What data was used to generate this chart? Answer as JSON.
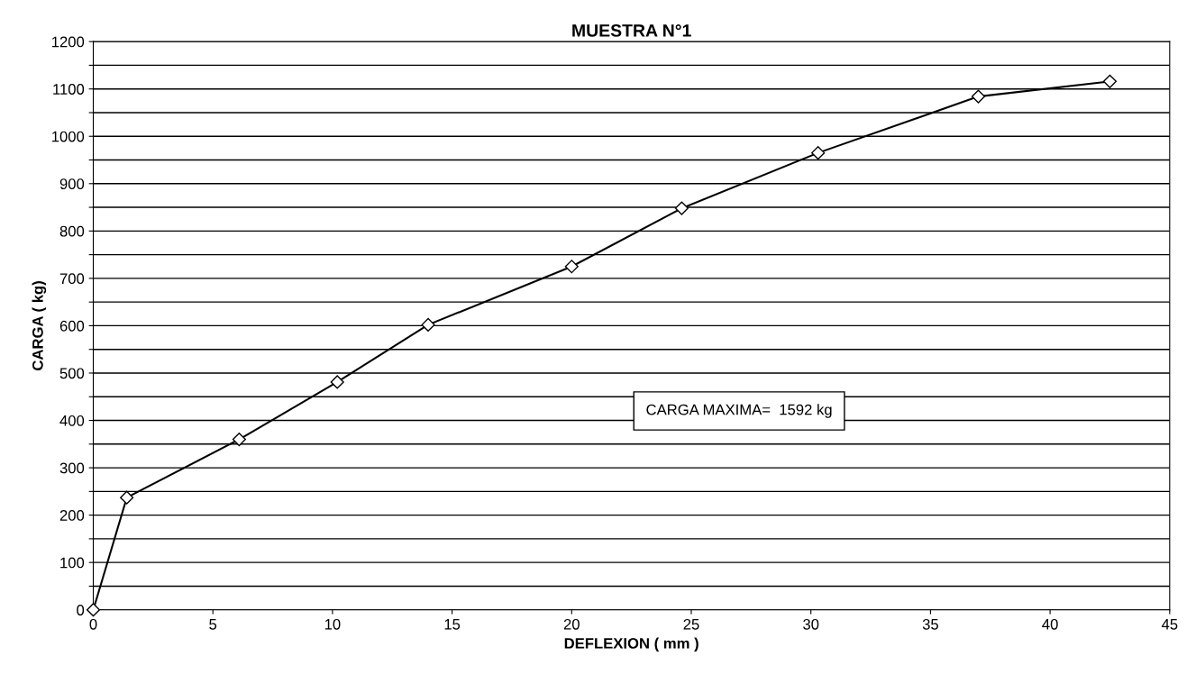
{
  "chart_data": {
    "type": "line",
    "title": "MUESTRA N°1",
    "xlabel": "DEFLEXION ( mm )",
    "ylabel": "CARGA ( kg)",
    "annotations": [
      "CARGA MAXIMA=  1592 kg"
    ],
    "series": [
      {
        "color": "#000000",
        "x": [
          0,
          1.4,
          6.1,
          10.2,
          14.0,
          20.0,
          24.6,
          30.3,
          37.0,
          42.5
        ],
        "values": [
          0,
          237,
          360,
          481,
          602,
          725,
          848,
          965,
          1084,
          1116
        ]
      }
    ],
    "xlim": [
      0,
      45
    ],
    "xticks": [
      0,
      5,
      10,
      15,
      20,
      25,
      30,
      35,
      40,
      45
    ],
    "ylim": [
      0,
      1200
    ],
    "yticks": [
      0,
      {
        "value": 50,
        "label": null
      },
      100,
      {
        "value": 150,
        "label": null
      },
      200,
      {
        "value": 250,
        "label": null
      },
      300,
      {
        "value": 350,
        "label": null
      },
      400,
      {
        "value": 450,
        "label": null
      },
      500,
      {
        "value": 550,
        "label": null
      },
      600,
      {
        "value": 650,
        "label": null
      },
      700,
      {
        "value": 750,
        "label": null
      },
      800,
      {
        "value": 850,
        "label": null
      },
      900,
      {
        "value": 950,
        "label": null
      },
      1000,
      {
        "value": 1050,
        "label": null
      },
      1100,
      {
        "value": 1150,
        "label": null
      },
      1200
    ],
    "grid": "y",
    "marker": "diamond",
    "line_style": "solid"
  }
}
